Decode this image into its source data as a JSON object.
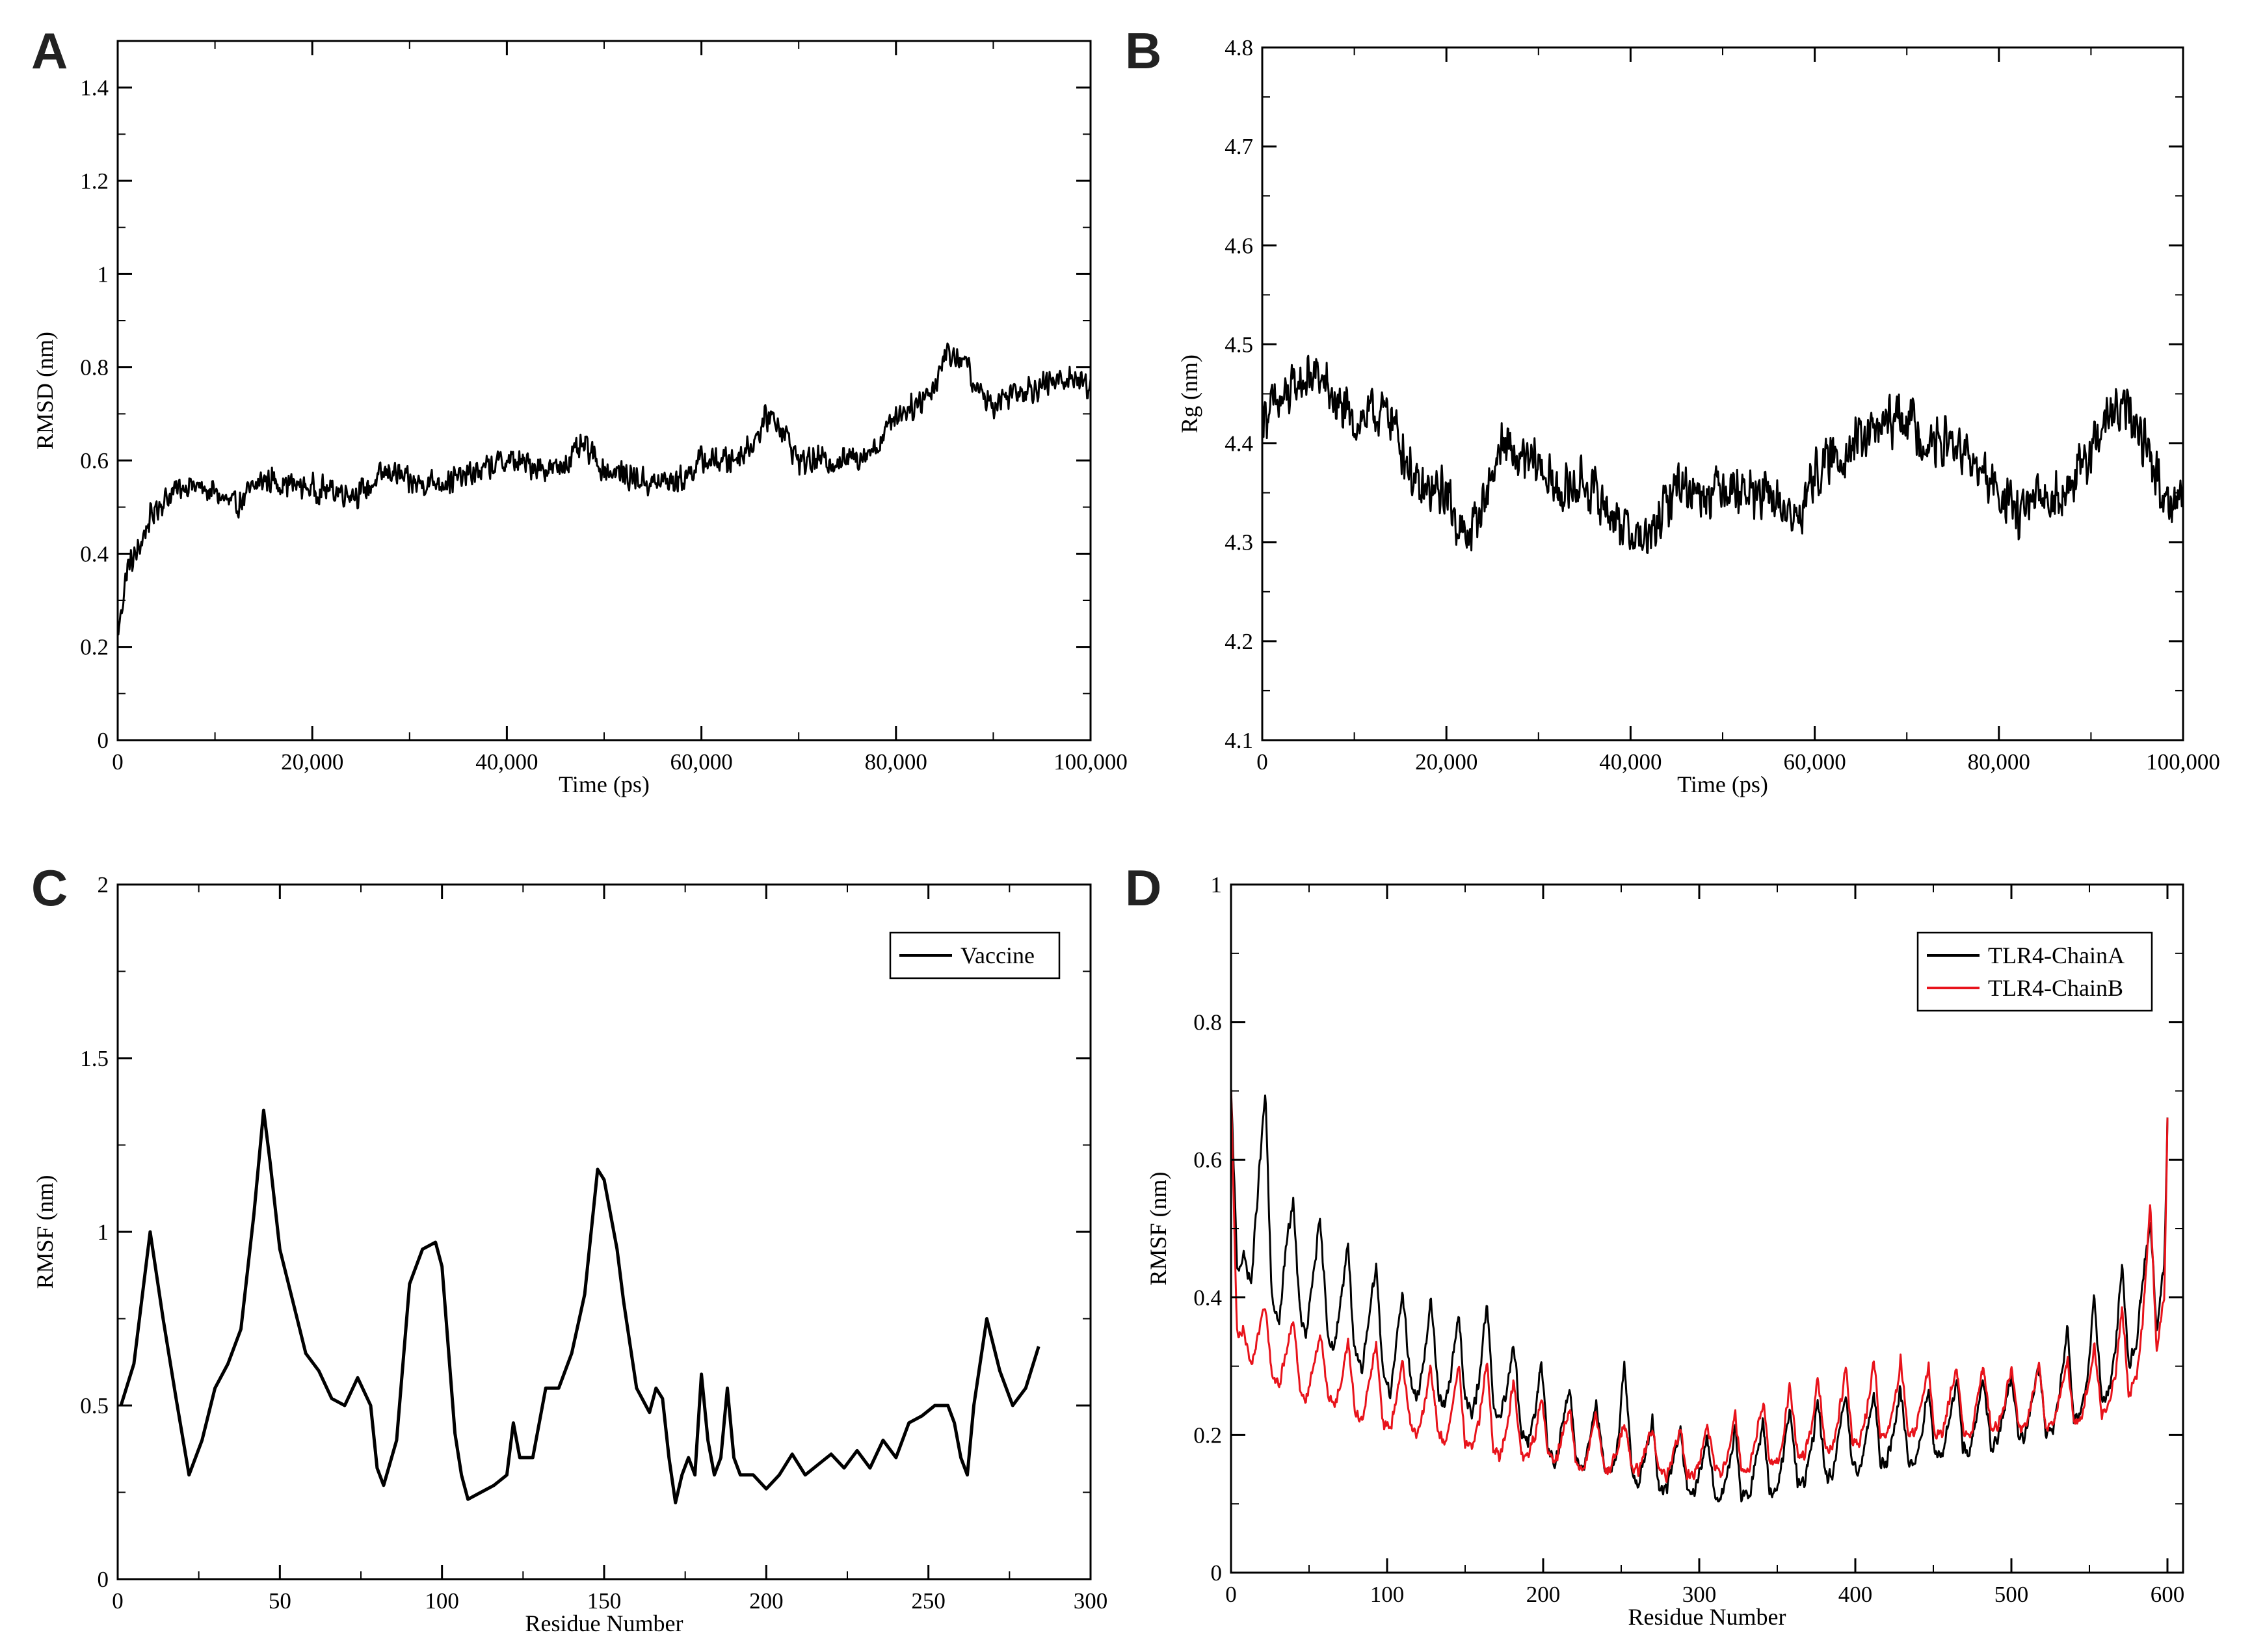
{
  "chart_data": [
    {
      "panel": "A",
      "type": "line",
      "xlabel": "Time (ps)",
      "ylabel": "RMSD (nm)",
      "xlim": [
        0,
        100000
      ],
      "ylim": [
        0,
        1.5
      ],
      "xticks": [
        0,
        20000,
        40000,
        60000,
        80000,
        100000
      ],
      "xtick_labels": [
        "0",
        "20,000",
        "40,000",
        "60,000",
        "80,000",
        "100,000"
      ],
      "yticks": [
        0,
        0.2,
        0.4,
        0.6,
        0.8,
        1,
        1.2,
        1.4
      ],
      "ytick_labels": [
        "0",
        "0.2",
        "0.4",
        "0.6",
        "0.8",
        "1",
        "1.2",
        "1.4"
      ],
      "legend": null,
      "series": [
        {
          "name": "RMSD",
          "color": "#000000",
          "noise": 0.035,
          "x": [
            0,
            500,
            1000,
            2000,
            3000,
            4000,
            5000,
            7000,
            10000,
            12000,
            15000,
            20000,
            25000,
            28000,
            30000,
            35000,
            40000,
            45000,
            48000,
            50000,
            52000,
            55000,
            58000,
            60000,
            63000,
            65000,
            67000,
            68000,
            70000,
            75000,
            78000,
            80000,
            82000,
            84000,
            85000,
            87000,
            88000,
            90000,
            92000,
            95000,
            98000,
            100000
          ],
          "y": [
            0.22,
            0.3,
            0.37,
            0.4,
            0.46,
            0.5,
            0.52,
            0.55,
            0.53,
            0.5,
            0.56,
            0.54,
            0.53,
            0.58,
            0.55,
            0.56,
            0.6,
            0.58,
            0.63,
            0.58,
            0.57,
            0.55,
            0.56,
            0.6,
            0.6,
            0.63,
            0.7,
            0.68,
            0.6,
            0.6,
            0.63,
            0.7,
            0.72,
            0.76,
            0.83,
            0.82,
            0.76,
            0.72,
            0.75,
            0.76,
            0.78,
            0.76
          ]
        }
      ]
    },
    {
      "panel": "B",
      "type": "line",
      "xlabel": "Time (ps)",
      "ylabel": "Rg (nm)",
      "xlim": [
        0,
        100000
      ],
      "ylim": [
        4.1,
        4.8
      ],
      "xticks": [
        0,
        20000,
        40000,
        60000,
        80000,
        100000
      ],
      "xtick_labels": [
        "0",
        "20,000",
        "40,000",
        "60,000",
        "80,000",
        "100,000"
      ],
      "yticks": [
        4.1,
        4.2,
        4.3,
        4.4,
        4.5,
        4.6,
        4.7,
        4.8
      ],
      "ytick_labels": [
        "4.1",
        "4.2",
        "4.3",
        "4.4",
        "4.5",
        "4.6",
        "4.7",
        "4.8"
      ],
      "legend": null,
      "series": [
        {
          "name": "Rg",
          "color": "#000000",
          "noise": 0.03,
          "x": [
            0,
            2000,
            4000,
            6000,
            8000,
            10000,
            12000,
            14000,
            15000,
            17000,
            20000,
            22000,
            24000,
            26000,
            28000,
            30000,
            32000,
            35000,
            38000,
            40000,
            42000,
            45000,
            48000,
            50000,
            53000,
            56000,
            58000,
            60000,
            63000,
            66000,
            68000,
            70000,
            72000,
            75000,
            78000,
            80000,
            82000,
            84000,
            86000,
            88000,
            90000,
            92000,
            94000,
            96000,
            98000,
            100000
          ],
          "y": [
            4.43,
            4.44,
            4.46,
            4.47,
            4.44,
            4.42,
            4.43,
            4.43,
            4.4,
            4.35,
            4.35,
            4.3,
            4.34,
            4.4,
            4.38,
            4.38,
            4.35,
            4.36,
            4.33,
            4.31,
            4.3,
            4.36,
            4.35,
            4.36,
            4.35,
            4.34,
            4.32,
            4.37,
            4.39,
            4.41,
            4.42,
            4.43,
            4.4,
            4.4,
            4.37,
            4.35,
            4.33,
            4.34,
            4.35,
            4.36,
            4.39,
            4.43,
            4.43,
            4.4,
            4.34,
            4.35
          ]
        }
      ]
    },
    {
      "panel": "C",
      "type": "line",
      "xlabel": "Residue Number",
      "ylabel": "RMSF (nm)",
      "xlim": [
        0,
        300
      ],
      "ylim": [
        0,
        2
      ],
      "xticks": [
        0,
        50,
        100,
        150,
        200,
        250,
        300
      ],
      "xtick_labels": [
        "0",
        "50",
        "100",
        "150",
        "200",
        "250",
        "300"
      ],
      "yticks": [
        0,
        0.5,
        1,
        1.5,
        2
      ],
      "ytick_labels": [
        "0",
        "0.5",
        "1",
        "1.5",
        "2"
      ],
      "legend": {
        "position": "top-right",
        "entries": [
          "Vaccine"
        ]
      },
      "series": [
        {
          "name": "Vaccine",
          "color": "#000000",
          "noise": 0,
          "x": [
            1,
            5,
            10,
            14,
            18,
            22,
            26,
            30,
            34,
            38,
            42,
            45,
            47,
            50,
            54,
            58,
            62,
            66,
            70,
            74,
            78,
            80,
            82,
            86,
            90,
            94,
            98,
            100,
            104,
            106,
            108,
            112,
            116,
            120,
            122,
            124,
            128,
            132,
            136,
            140,
            144,
            148,
            150,
            154,
            156,
            160,
            164,
            166,
            168,
            170,
            172,
            174,
            176,
            178,
            180,
            182,
            184,
            186,
            188,
            190,
            192,
            196,
            200,
            204,
            208,
            212,
            216,
            220,
            224,
            228,
            232,
            236,
            240,
            244,
            248,
            252,
            256,
            258,
            260,
            262,
            264,
            268,
            272,
            276,
            280,
            284
          ],
          "y": [
            0.5,
            0.62,
            1.0,
            0.75,
            0.52,
            0.3,
            0.4,
            0.55,
            0.62,
            0.72,
            1.05,
            1.35,
            1.2,
            0.95,
            0.8,
            0.65,
            0.6,
            0.52,
            0.5,
            0.58,
            0.5,
            0.32,
            0.27,
            0.4,
            0.85,
            0.95,
            0.97,
            0.9,
            0.42,
            0.3,
            0.23,
            0.25,
            0.27,
            0.3,
            0.45,
            0.35,
            0.35,
            0.55,
            0.55,
            0.65,
            0.82,
            1.18,
            1.15,
            0.95,
            0.8,
            0.55,
            0.48,
            0.55,
            0.52,
            0.35,
            0.22,
            0.3,
            0.35,
            0.3,
            0.59,
            0.4,
            0.3,
            0.35,
            0.55,
            0.35,
            0.3,
            0.3,
            0.26,
            0.3,
            0.36,
            0.3,
            0.33,
            0.36,
            0.32,
            0.37,
            0.32,
            0.4,
            0.35,
            0.45,
            0.47,
            0.5,
            0.5,
            0.45,
            0.35,
            0.3,
            0.5,
            0.75,
            0.6,
            0.5,
            0.55,
            0.67
          ]
        }
      ]
    },
    {
      "panel": "D",
      "type": "line",
      "xlabel": "Residue Number",
      "ylabel": "RMSF (nm)",
      "xlim": [
        0,
        610
      ],
      "ylim": [
        0,
        1
      ],
      "xticks": [
        0,
        100,
        200,
        300,
        400,
        500,
        600
      ],
      "xtick_labels": [
        "0",
        "100",
        "200",
        "300",
        "400",
        "500",
        "600"
      ],
      "yticks": [
        0,
        0.2,
        0.4,
        0.6,
        0.8,
        1
      ],
      "ytick_labels": [
        "0",
        "0.2",
        "0.4",
        "0.6",
        "0.8",
        "1"
      ],
      "legend": {
        "position": "top-right",
        "entries": [
          "TLR4-ChainA",
          "TLR4-ChainB"
        ]
      },
      "series": [
        {
          "name": "TLR4-ChainA",
          "color": "#000000",
          "noise": 0.012,
          "x": [
            0,
            4,
            8,
            13,
            17,
            22,
            26,
            31,
            35,
            40,
            44,
            48,
            53,
            57,
            62,
            66,
            71,
            75,
            79,
            84,
            88,
            93,
            97,
            102,
            106,
            110,
            115,
            119,
            124,
            128,
            133,
            137,
            141,
            146,
            150,
            155,
            159,
            164,
            168,
            172,
            177,
            181,
            186,
            190,
            195,
            199,
            203,
            208,
            212,
            217,
            221,
            226,
            230,
            234,
            239,
            243,
            248,
            252,
            257,
            261,
            265,
            270,
            274,
            279,
            283,
            288,
            292,
            296,
            301,
            305,
            310,
            314,
            319,
            323,
            327,
            332,
            336,
            341,
            345,
            350,
            354,
            358,
            363,
            367,
            372,
            376,
            381,
            385,
            389,
            394,
            398,
            403,
            407,
            412,
            416,
            420,
            425,
            429,
            434,
            438,
            443,
            447,
            451,
            456,
            460,
            465,
            469,
            474,
            478,
            482,
            487,
            491,
            496,
            500,
            505,
            509,
            513,
            518,
            522,
            527,
            531,
            536,
            540,
            544,
            549,
            553,
            558,
            562,
            567,
            571,
            575,
            580,
            584,
            589,
            593,
            598,
            600
          ],
          "y": [
            0.7,
            0.44,
            0.46,
            0.42,
            0.55,
            0.7,
            0.4,
            0.36,
            0.47,
            0.54,
            0.38,
            0.34,
            0.44,
            0.51,
            0.35,
            0.32,
            0.41,
            0.48,
            0.32,
            0.29,
            0.37,
            0.45,
            0.3,
            0.26,
            0.33,
            0.41,
            0.28,
            0.25,
            0.31,
            0.4,
            0.26,
            0.24,
            0.29,
            0.38,
            0.25,
            0.23,
            0.28,
            0.4,
            0.24,
            0.22,
            0.27,
            0.34,
            0.2,
            0.19,
            0.23,
            0.31,
            0.18,
            0.16,
            0.21,
            0.27,
            0.17,
            0.15,
            0.2,
            0.25,
            0.15,
            0.14,
            0.19,
            0.31,
            0.14,
            0.13,
            0.17,
            0.22,
            0.12,
            0.12,
            0.16,
            0.21,
            0.12,
            0.11,
            0.15,
            0.2,
            0.11,
            0.11,
            0.15,
            0.21,
            0.11,
            0.11,
            0.16,
            0.22,
            0.12,
            0.12,
            0.17,
            0.24,
            0.13,
            0.13,
            0.18,
            0.25,
            0.14,
            0.14,
            0.19,
            0.26,
            0.15,
            0.15,
            0.2,
            0.26,
            0.16,
            0.16,
            0.21,
            0.27,
            0.16,
            0.16,
            0.21,
            0.27,
            0.17,
            0.17,
            0.22,
            0.28,
            0.18,
            0.18,
            0.23,
            0.28,
            0.18,
            0.19,
            0.24,
            0.29,
            0.19,
            0.2,
            0.25,
            0.3,
            0.2,
            0.21,
            0.27,
            0.36,
            0.22,
            0.23,
            0.29,
            0.4,
            0.25,
            0.26,
            0.33,
            0.45,
            0.3,
            0.33,
            0.42,
            0.52,
            0.35,
            0.45,
            0.66
          ]
        },
        {
          "name": "TLR4-ChainB",
          "color": "#e8131b",
          "noise": 0.01,
          "x": [
            0,
            4,
            8,
            13,
            17,
            22,
            26,
            31,
            35,
            40,
            44,
            48,
            53,
            57,
            62,
            66,
            71,
            75,
            79,
            84,
            88,
            93,
            97,
            102,
            106,
            110,
            115,
            119,
            124,
            128,
            133,
            137,
            141,
            146,
            150,
            155,
            159,
            164,
            168,
            172,
            177,
            181,
            186,
            190,
            195,
            199,
            203,
            208,
            212,
            217,
            221,
            226,
            230,
            234,
            239,
            243,
            248,
            252,
            257,
            261,
            265,
            270,
            274,
            279,
            283,
            288,
            292,
            296,
            301,
            305,
            310,
            314,
            319,
            323,
            327,
            332,
            336,
            341,
            345,
            350,
            354,
            358,
            363,
            367,
            372,
            376,
            381,
            385,
            389,
            394,
            398,
            403,
            407,
            412,
            416,
            420,
            425,
            429,
            434,
            438,
            443,
            447,
            451,
            456,
            460,
            465,
            469,
            474,
            478,
            482,
            487,
            491,
            496,
            500,
            505,
            509,
            513,
            518,
            522,
            527,
            531,
            536,
            540,
            544,
            549,
            553,
            558,
            562,
            567,
            571,
            575,
            580,
            584,
            589,
            593,
            598,
            600
          ],
          "y": [
            0.7,
            0.34,
            0.35,
            0.3,
            0.34,
            0.39,
            0.29,
            0.27,
            0.32,
            0.37,
            0.27,
            0.25,
            0.3,
            0.35,
            0.26,
            0.24,
            0.28,
            0.34,
            0.24,
            0.22,
            0.27,
            0.33,
            0.22,
            0.21,
            0.25,
            0.31,
            0.21,
            0.2,
            0.24,
            0.3,
            0.2,
            0.19,
            0.23,
            0.3,
            0.19,
            0.18,
            0.22,
            0.31,
            0.18,
            0.17,
            0.21,
            0.28,
            0.17,
            0.17,
            0.2,
            0.26,
            0.17,
            0.16,
            0.2,
            0.24,
            0.16,
            0.15,
            0.19,
            0.23,
            0.15,
            0.15,
            0.18,
            0.22,
            0.15,
            0.15,
            0.18,
            0.21,
            0.15,
            0.14,
            0.17,
            0.21,
            0.14,
            0.14,
            0.17,
            0.22,
            0.15,
            0.14,
            0.18,
            0.23,
            0.15,
            0.15,
            0.19,
            0.25,
            0.16,
            0.16,
            0.2,
            0.27,
            0.17,
            0.17,
            0.21,
            0.29,
            0.18,
            0.18,
            0.22,
            0.3,
            0.19,
            0.19,
            0.23,
            0.31,
            0.2,
            0.2,
            0.24,
            0.31,
            0.2,
            0.2,
            0.25,
            0.3,
            0.2,
            0.2,
            0.25,
            0.3,
            0.21,
            0.2,
            0.25,
            0.3,
            0.21,
            0.21,
            0.25,
            0.3,
            0.21,
            0.21,
            0.25,
            0.3,
            0.21,
            0.22,
            0.26,
            0.31,
            0.22,
            0.22,
            0.27,
            0.33,
            0.23,
            0.24,
            0.29,
            0.39,
            0.26,
            0.28,
            0.36,
            0.54,
            0.32,
            0.4,
            0.66
          ]
        }
      ]
    }
  ]
}
